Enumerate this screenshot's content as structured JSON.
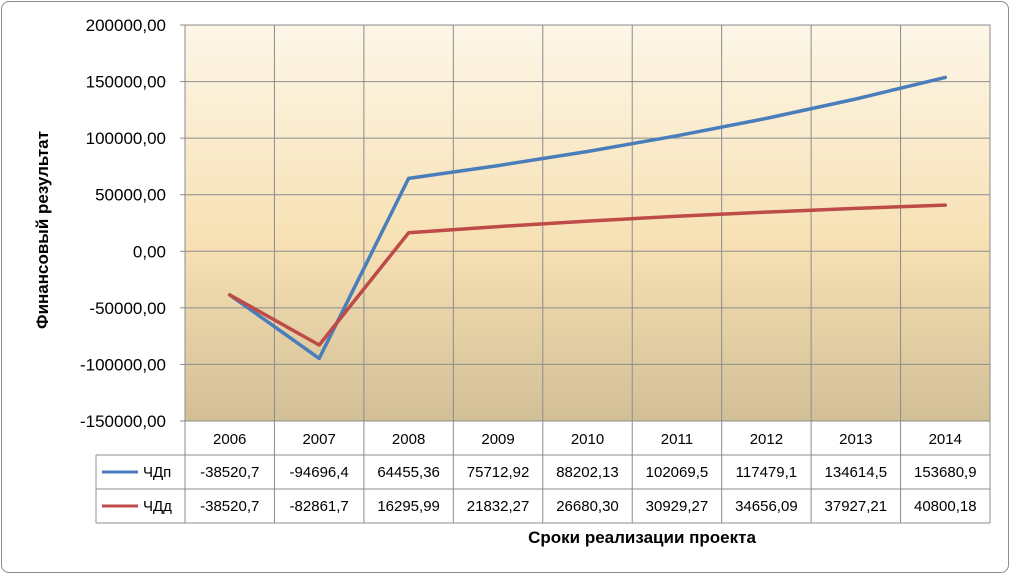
{
  "chart_data": {
    "type": "line",
    "categories": [
      "2006",
      "2007",
      "2008",
      "2009",
      "2010",
      "2011",
      "2012",
      "2013",
      "2014"
    ],
    "ylabel": "Финансовый результат",
    "xlabel": "Сроки реализации проекта",
    "ylim": [
      -150000,
      200000
    ],
    "y_tick_labels": [
      "200000,00",
      "150000,00",
      "100000,00",
      "50000,00",
      "0,00",
      "-50000,00",
      "-100000,00",
      "-150000,00"
    ],
    "y_ticks": [
      200000,
      150000,
      100000,
      50000,
      0,
      -50000,
      -100000,
      -150000
    ],
    "grid": true,
    "legend": "data-table",
    "series": [
      {
        "name": "ЧДп",
        "color": "#4a7ebb",
        "values": [
          -38520.7,
          -94696.4,
          64455.36,
          75712.92,
          88202.13,
          102069.5,
          117479.1,
          134614.5,
          153680.9
        ],
        "labels": [
          "-38520,7",
          "-94696,4",
          "64455,36",
          "75712,92",
          "88202,13",
          "102069,5",
          "117479,1",
          "134614,5",
          "153680,9"
        ]
      },
      {
        "name": "ЧДд",
        "color": "#be4b48",
        "values": [
          -38520.7,
          -82861.7,
          16295.99,
          21832.27,
          26680.3,
          30929.27,
          34656.09,
          37927.21,
          40800.18
        ],
        "labels": [
          "-38520,7",
          "-82861,7",
          "16295,99",
          "21832,27",
          "26680,30",
          "30929,27",
          "34656,09",
          "37927,21",
          "40800,18"
        ]
      }
    ]
  }
}
